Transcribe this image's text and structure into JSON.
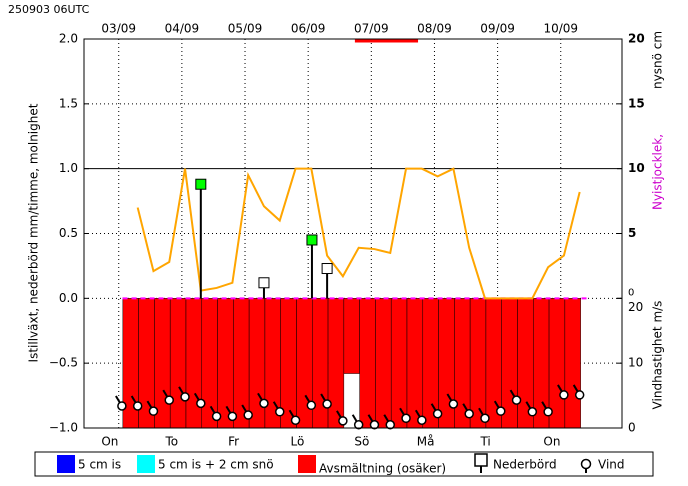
{
  "timestamp": "250903 06UTC",
  "chart_data": {
    "type": "meteogram",
    "ylabel": "Istillväxt, nederbörd mm/timme, molnighet",
    "y2label": "nysnö cm",
    "y2label_extra": "Nyistjocklek,",
    "y3label": "Vindhastighet m/s",
    "xlim": [
      2.45,
      10.97
    ],
    "xticks": [
      {
        "value": 3,
        "label": "03/09"
      },
      {
        "value": 4,
        "label": "04/09"
      },
      {
        "value": 5,
        "label": "05/09"
      },
      {
        "value": 6,
        "label": "06/09"
      },
      {
        "value": 7,
        "label": "07/09"
      },
      {
        "value": 8,
        "label": "08/09"
      },
      {
        "value": 9,
        "label": "09/09"
      },
      {
        "value": 10,
        "label": "10/09"
      }
    ],
    "x2ticks": [
      {
        "value": 2.86,
        "label": "On"
      },
      {
        "value": 3.84,
        "label": "To"
      },
      {
        "value": 4.82,
        "label": "Fr"
      },
      {
        "value": 5.83,
        "label": "Lö"
      },
      {
        "value": 6.85,
        "label": "Sö"
      },
      {
        "value": 7.86,
        "label": "Må"
      },
      {
        "value": 8.81,
        "label": "Ti"
      },
      {
        "value": 9.86,
        "label": "On"
      }
    ],
    "ylim": [
      -1,
      2
    ],
    "yticks": [
      {
        "value": -1,
        "label": "−1.0"
      },
      {
        "value": -0.5,
        "label": "−0.5"
      },
      {
        "value": 0,
        "label": "0.0"
      },
      {
        "value": 0.5,
        "label": "0.5"
      },
      {
        "value": 1,
        "label": "1.0"
      },
      {
        "value": 1.5,
        "label": "1.5"
      },
      {
        "value": 2,
        "label": "2.0"
      }
    ],
    "y2lim": [
      -10,
      20
    ],
    "y2ticks": [
      0,
      5,
      10,
      15,
      20
    ],
    "y3lim": [
      0,
      60
    ],
    "y3ticks": [
      0,
      10,
      20
    ],
    "grid": true,
    "reference_line": 1,
    "series": [
      {
        "type": "bar",
        "color": "#ff0000",
        "x": [
          3.19,
          3.44,
          3.69,
          3.94,
          4.19,
          4.44,
          4.69,
          4.94,
          5.19,
          5.44,
          5.69,
          5.94,
          6.19,
          6.44,
          6.69,
          6.94,
          7.19,
          7.44,
          7.69,
          7.94,
          8.19,
          8.44,
          8.69,
          8.94,
          9.19,
          9.44,
          9.69,
          9.94,
          10.19
        ],
        "values": [
          -1,
          -1,
          -1,
          -1,
          -1,
          -1,
          -1,
          -1,
          -1,
          -1,
          -1,
          -1,
          -1,
          -1,
          -0.58,
          -1,
          -1,
          -1,
          -1,
          -1,
          -1,
          -1,
          -1,
          -1,
          -1,
          -1,
          -1,
          -1,
          -1
        ]
      },
      {
        "type": "dashed",
        "color": "#ff00ff",
        "x": [
          3.06,
          10.46
        ],
        "values": [
          0,
          0
        ]
      },
      {
        "type": "topbar",
        "color": "#ff0000",
        "x": [
          6.74,
          7.74
        ],
        "values": [
          2,
          2
        ]
      },
      {
        "type": "line",
        "color": "#ffa500",
        "x": [
          3.3,
          3.55,
          3.8,
          4.05,
          4.3,
          4.55,
          4.8,
          5.05,
          5.3,
          5.55,
          5.8,
          6.05,
          6.3,
          6.55,
          6.8,
          7.05,
          7.3,
          7.55,
          7.8,
          8.05,
          8.3,
          8.55,
          8.8,
          9.05,
          9.3,
          9.55,
          9.8,
          10.05,
          10.3
        ],
        "values": [
          0.7,
          0.21,
          0.28,
          1.0,
          0.06,
          0.08,
          0.12,
          0.95,
          0.71,
          0.6,
          1.0,
          1.0,
          0.33,
          0.17,
          0.39,
          0.38,
          0.35,
          1.0,
          1.0,
          0.94,
          1.0,
          0.39,
          0,
          0,
          0,
          0,
          0.24,
          0.33,
          0.82
        ]
      },
      {
        "type": "stem",
        "x": [
          4.3,
          5.3,
          6.06,
          6.3
        ],
        "values": [
          0.88,
          0.12,
          0.45,
          0.23
        ],
        "colors": [
          "#00ff00",
          "#ffffff",
          "#00ff00",
          "#ffffff"
        ]
      },
      {
        "type": "wind",
        "axis": "y3",
        "x": [
          3.05,
          3.3,
          3.55,
          3.8,
          4.05,
          4.3,
          4.55,
          4.8,
          5.05,
          5.3,
          5.55,
          5.8,
          6.05,
          6.3,
          6.55,
          6.8,
          7.05,
          7.3,
          7.55,
          7.8,
          8.05,
          8.3,
          8.55,
          8.8,
          9.05,
          9.3,
          9.55,
          9.8,
          10.05,
          10.3
        ],
        "values": [
          3.4,
          3.4,
          2.6,
          4.3,
          4.8,
          3.8,
          1.8,
          1.8,
          2.0,
          3.8,
          2.5,
          1.2,
          3.5,
          3.7,
          1.1,
          0.5,
          0.5,
          0.5,
          1.5,
          1.2,
          2.2,
          3.7,
          2.2,
          1.5,
          2.6,
          4.3,
          2.5,
          2.5,
          5.1,
          5.1
        ]
      }
    ],
    "legend": [
      {
        "label": "5 cm is",
        "color": "#0000ff",
        "marker": "square"
      },
      {
        "label": "5 cm is + 2 cm snö",
        "color": "#00ffff",
        "marker": "square"
      },
      {
        "label": "Avsmältning (osäker)",
        "color": "#ff0000",
        "marker": "square"
      },
      {
        "label": "Nederbörd",
        "color": "#ffffff",
        "marker": "stem"
      },
      {
        "label": "Vind",
        "color": "#ffffff",
        "marker": "wind"
      }
    ]
  }
}
